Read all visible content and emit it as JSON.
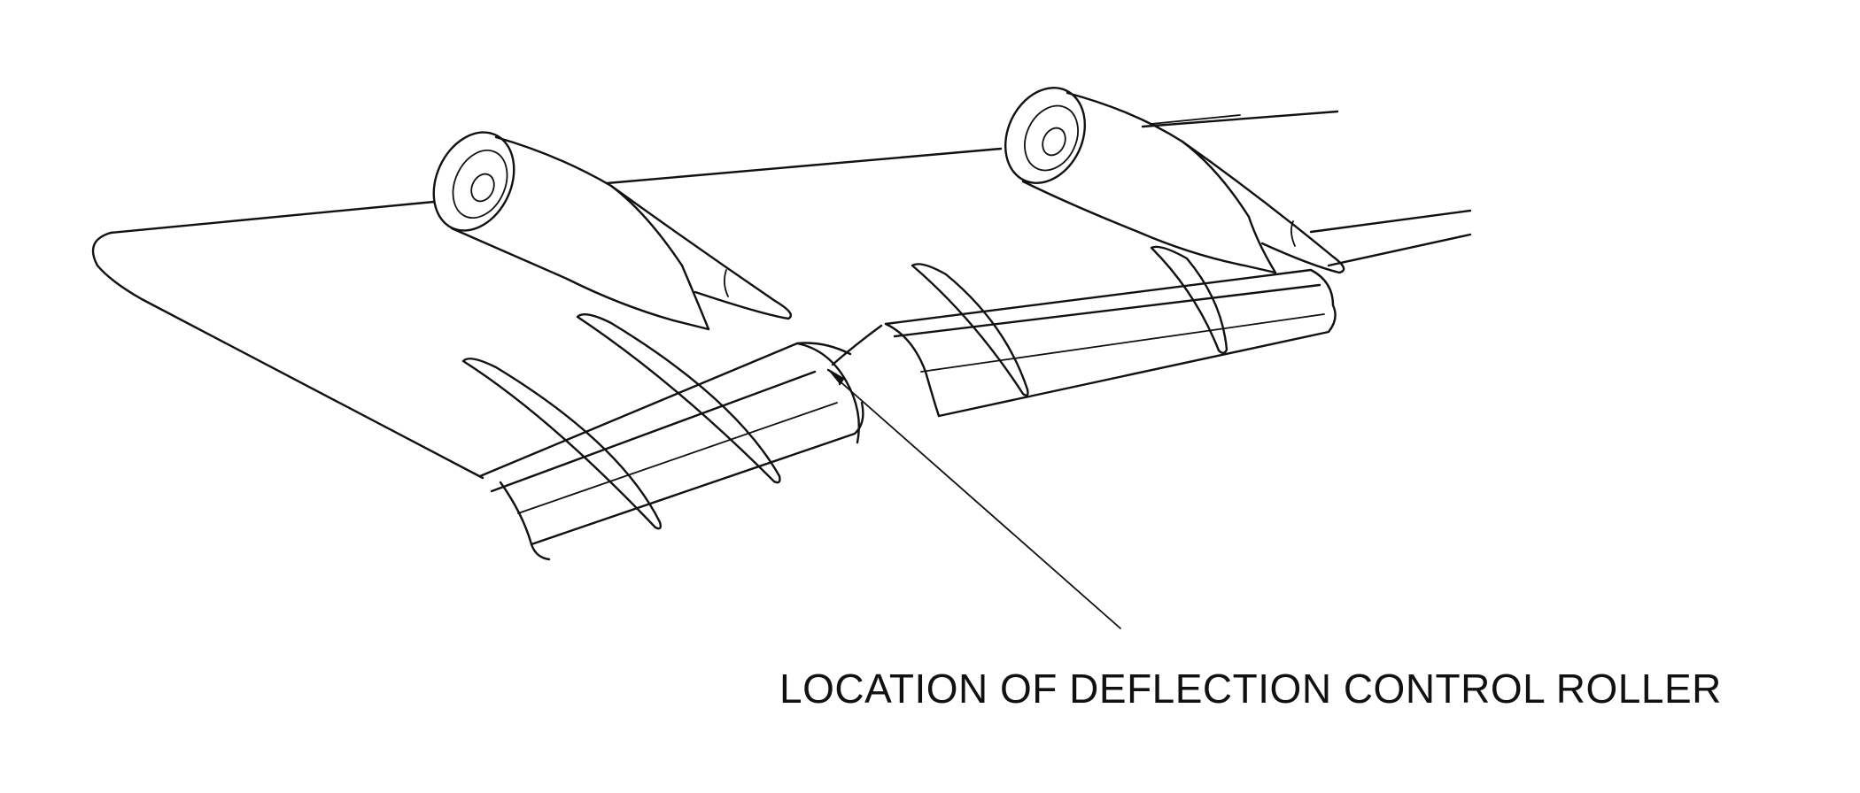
{
  "callout": {
    "label": "LOCATION OF DEFLECTION CONTROL ROLLER"
  },
  "colors": {
    "ink": "#111111",
    "background": "#ffffff"
  }
}
